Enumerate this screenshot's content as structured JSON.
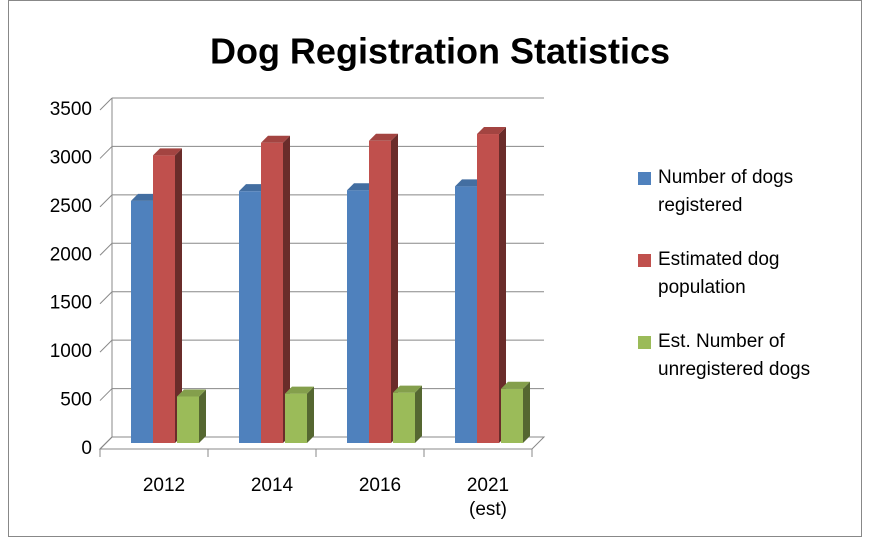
{
  "chart_data": {
    "type": "bar3d",
    "title": "Dog Registration Statistics",
    "categories": [
      "2012",
      "2014",
      "2016",
      "2021 (est)"
    ],
    "series": [
      {
        "name": "Number of dogs registered",
        "color": "#4f81bd",
        "values": [
          2500,
          2600,
          2610,
          2650
        ]
      },
      {
        "name": "Estimated dog population",
        "color": "#c0504d",
        "values": [
          2970,
          3100,
          3120,
          3190
        ]
      },
      {
        "name": "Est. Number of unregistered dogs",
        "color": "#9bbb59",
        "values": [
          480,
          510,
          520,
          560
        ]
      }
    ],
    "ylim": [
      0,
      3500
    ],
    "yticks": [
      0,
      500,
      1000,
      1500,
      2000,
      2500,
      3000,
      3500
    ],
    "grid": true,
    "legend": "right"
  }
}
